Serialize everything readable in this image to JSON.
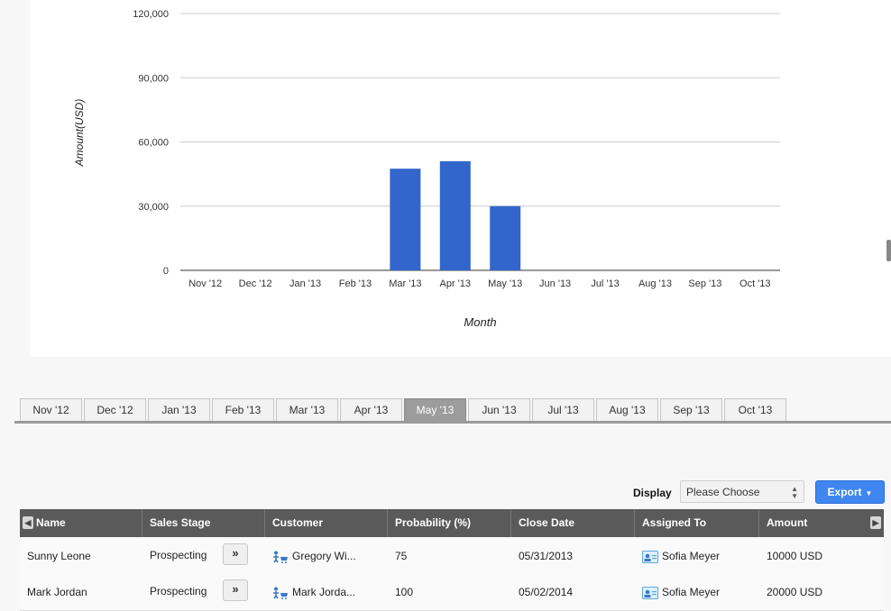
{
  "chart_data": {
    "type": "bar",
    "categories": [
      "Nov '12",
      "Dec '12",
      "Jan '13",
      "Feb '13",
      "Mar '13",
      "Apr '13",
      "May '13",
      "Jun '13",
      "Jul '13",
      "Aug '13",
      "Sep '13",
      "Oct '13"
    ],
    "values": [
      0,
      0,
      0,
      0,
      47500,
      51000,
      30000,
      0,
      0,
      0,
      0,
      0
    ],
    "title": "",
    "xlabel": "Month",
    "ylabel": "Amount(USD)",
    "ylim": [
      0,
      120000
    ],
    "yticks": [
      0,
      30000,
      60000,
      90000,
      120000
    ],
    "ytick_labels": [
      "0",
      "30,000",
      "60,000",
      "90,000",
      "120,000"
    ],
    "grid": true,
    "bar_color": "#3366cc"
  },
  "month_tabs": {
    "labels": [
      "Nov '12",
      "Dec '12",
      "Jan '13",
      "Feb '13",
      "Mar '13",
      "Apr '13",
      "May '13",
      "Jun '13",
      "Jul '13",
      "Aug '13",
      "Sep '13",
      "Oct '13"
    ],
    "active": "May '13"
  },
  "toolbar": {
    "display_label": "Display",
    "display_value": "Please Choose",
    "export_label": "Export"
  },
  "grid": {
    "columns": [
      "Name",
      "Sales Stage",
      "Customer",
      "Probability (%)",
      "Close Date",
      "Assigned To",
      "Amount"
    ],
    "rows": [
      {
        "name": "Sunny Leone",
        "stage": "Prospecting",
        "customer": "Gregory Wi...",
        "probability": "75",
        "close_date": "05/31/2013",
        "assigned_to": "Sofia Meyer",
        "amount": "10000 USD"
      },
      {
        "name": "Mark Jordan",
        "stage": "Prospecting",
        "customer": "Mark Jorda...",
        "probability": "100",
        "close_date": "05/02/2014",
        "assigned_to": "Sofia Meyer",
        "amount": "20000 USD"
      }
    ]
  },
  "icons": {
    "stage_button": "double-chevron-right-icon",
    "customer": "customer-cart-icon",
    "assignee": "contact-card-icon",
    "nav_left": "left-arrow-icon",
    "nav_right": "right-arrow-icon",
    "export_caret": "caret-down-icon"
  },
  "colors": {
    "bar": "#3366cc",
    "export_button": "#3f86f0",
    "grid_header": "#5a5a5a",
    "active_tab": "#9c9c9c"
  }
}
